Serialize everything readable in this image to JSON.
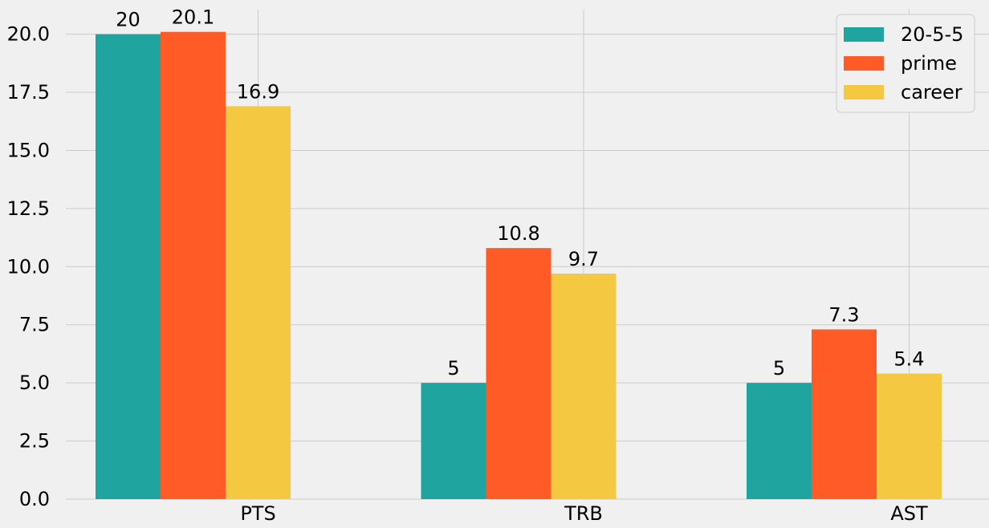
{
  "chart_data": {
    "type": "bar",
    "categories": [
      "PTS",
      "TRB",
      "AST"
    ],
    "series": [
      {
        "name": "20-5-5",
        "values": [
          20,
          5,
          5
        ],
        "labels": [
          "20",
          "5",
          "5"
        ],
        "color": "#1fa49f"
      },
      {
        "name": "prime",
        "values": [
          20.1,
          10.8,
          7.3
        ],
        "labels": [
          "20.1",
          "10.8",
          "7.3"
        ],
        "color": "#fe5b27"
      },
      {
        "name": "career",
        "values": [
          16.9,
          9.7,
          5.4
        ],
        "labels": [
          "16.9",
          "9.7",
          "5.4"
        ],
        "color": "#f4c941"
      }
    ],
    "yticks": [
      "0.0",
      "2.5",
      "5.0",
      "7.5",
      "10.0",
      "12.5",
      "15.0",
      "17.5",
      "20.0"
    ],
    "ylim": [
      0,
      21
    ],
    "title": "",
    "xlabel": "",
    "ylabel": "",
    "grid": true,
    "legend_position": "top-right"
  }
}
